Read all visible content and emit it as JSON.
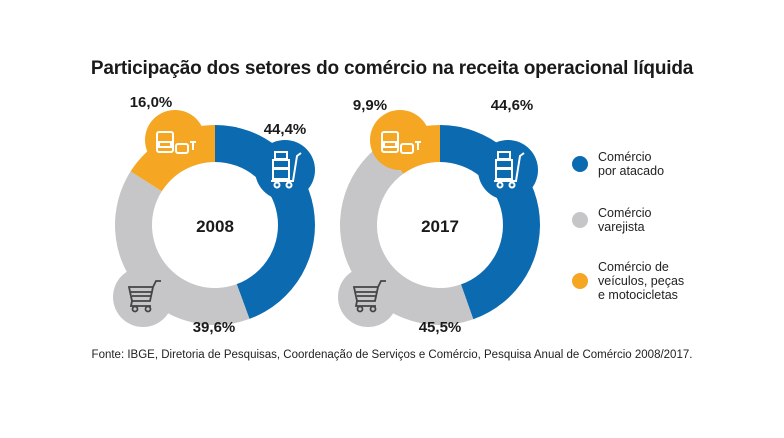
{
  "chart_data": {
    "type": "pie",
    "title": "Participação dos setores do comércio na receita operacional líquida",
    "source": "Fonte: IBGE, Diretoria de Pesquisas, Coordenação de Serviços e Comércio, Pesquisa Anual de Comércio 2008/2017.",
    "series_names": [
      "Comércio por atacado",
      "Comércio varejista",
      "Comércio de veículos, peças e motocicletas"
    ],
    "colors": [
      "#0B6AB0",
      "#C6C6C8",
      "#F5A623"
    ],
    "icons": [
      "hand-truck-icon",
      "shopping-cart-icon",
      "vehicles-icon"
    ],
    "charts": [
      {
        "label": "2008",
        "values": [
          44.4,
          39.6,
          16.0
        ],
        "labels": [
          "44,4%",
          "39,6%",
          "16,0%"
        ]
      },
      {
        "label": "2017",
        "values": [
          44.6,
          45.5,
          9.9
        ],
        "labels": [
          "44,6%",
          "45,5%",
          "9,9%"
        ]
      }
    ]
  },
  "legend": {
    "items": [
      {
        "text": "Comércio\npor atacado",
        "color": "#0B6AB0"
      },
      {
        "text": "Comércio\nvarejista",
        "color": "#C6C6C8"
      },
      {
        "text": "Comércio de\nveículos, peças\ne motocicletas",
        "color": "#F5A623"
      }
    ]
  }
}
